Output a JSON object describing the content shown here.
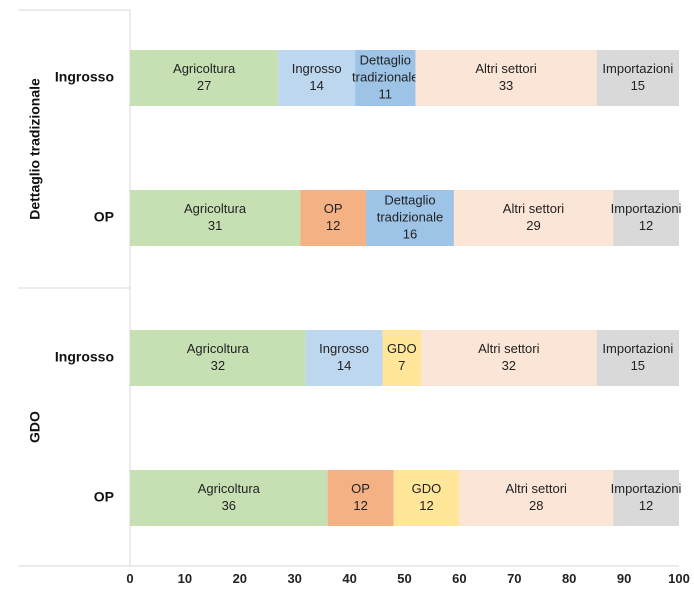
{
  "chart_data": {
    "type": "bar",
    "orientation": "horizontal",
    "stacked": true,
    "xlim": [
      0,
      100
    ],
    "xticks": [
      0,
      10,
      20,
      30,
      40,
      50,
      60,
      70,
      80,
      90,
      100
    ],
    "grid": false,
    "groups": [
      {
        "name": "Dettaglio tradizionale",
        "rows": [
          {
            "label": "Ingrosso",
            "segments": [
              {
                "name": "Agricoltura",
                "value": 27,
                "color": "#c6e0b4"
              },
              {
                "name": "Ingrosso",
                "value": 14,
                "color": "#bdd7ee"
              },
              {
                "name": "Dettaglio tradizionale",
                "value": 11,
                "color": "#9dc3e6"
              },
              {
                "name": "Altri settori",
                "value": 33,
                "color": "#fbe5d6"
              },
              {
                "name": "Importazioni",
                "value": 15,
                "color": "#d9d9d9"
              }
            ]
          },
          {
            "label": "OP",
            "segments": [
              {
                "name": "Agricoltura",
                "value": 31,
                "color": "#c6e0b4"
              },
              {
                "name": "OP",
                "value": 12,
                "color": "#f4b183"
              },
              {
                "name": "Dettaglio tradizionale",
                "value": 16,
                "color": "#9dc3e6"
              },
              {
                "name": "Altri settori",
                "value": 29,
                "color": "#fbe5d6"
              },
              {
                "name": "Importazioni",
                "value": 12,
                "color": "#d9d9d9"
              }
            ]
          }
        ]
      },
      {
        "name": "GDO",
        "rows": [
          {
            "label": "Ingrosso",
            "segments": [
              {
                "name": "Agricoltura",
                "value": 32,
                "color": "#c6e0b4"
              },
              {
                "name": "Ingrosso",
                "value": 14,
                "color": "#bdd7ee"
              },
              {
                "name": "GDO",
                "value": 7,
                "color": "#ffe699"
              },
              {
                "name": "Altri settori",
                "value": 32,
                "color": "#fbe5d6"
              },
              {
                "name": "Importazioni",
                "value": 15,
                "color": "#d9d9d9"
              }
            ]
          },
          {
            "label": "OP",
            "segments": [
              {
                "name": "Agricoltura",
                "value": 36,
                "color": "#c6e0b4"
              },
              {
                "name": "OP",
                "value": 12,
                "color": "#f4b183"
              },
              {
                "name": "GDO",
                "value": 12,
                "color": "#ffe699"
              },
              {
                "name": "Altri settori",
                "value": 28,
                "color": "#fbe5d6"
              },
              {
                "name": "Importazioni",
                "value": 12,
                "color": "#d9d9d9"
              }
            ]
          }
        ]
      }
    ]
  }
}
